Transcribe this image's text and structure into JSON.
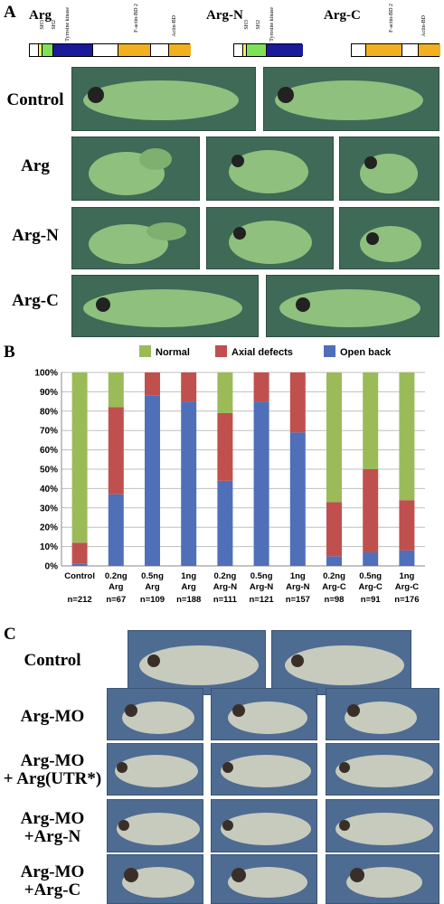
{
  "panels": {
    "a_label": "A",
    "b_label": "B",
    "c_label": "C"
  },
  "constructs": [
    {
      "name": "Arg",
      "domains": [
        "SH3",
        "SH2",
        "Tyrosine kinase",
        "F-actin-BD 2",
        "Actin-BD"
      ]
    },
    {
      "name": "Arg-N",
      "domains": [
        "SH3",
        "SH2",
        "Tyrosine kinase"
      ]
    },
    {
      "name": "Arg-C",
      "domains": [
        "F-actin-BD 2",
        "Actin-BD"
      ]
    }
  ],
  "panel_a_rows": [
    "Control",
    "Arg",
    "Arg-N",
    "Arg-C"
  ],
  "panel_c_rows": [
    {
      "line1": "Control",
      "line2": ""
    },
    {
      "line1": "Arg-MO",
      "line2": ""
    },
    {
      "line1": "Arg-MO",
      "line2": "+ Arg(UTR*)"
    },
    {
      "line1": "Arg-MO",
      "line2": "+Arg-N"
    },
    {
      "line1": "Arg-MO",
      "line2": "+Arg-C"
    }
  ],
  "colors": {
    "normal": "#9bbb59",
    "axial": "#c0504d",
    "open_back": "#4f6fb9",
    "sh2": "#7fe05a",
    "kinase": "#1a1a9a",
    "actin": "#f0b020"
  },
  "chart_data": {
    "type": "bar",
    "stacked": true,
    "legend_position": "top",
    "legend": [
      "Normal",
      "Axial defects",
      "Open back"
    ],
    "y_ticks": [
      "0%",
      "10%",
      "20%",
      "30%",
      "40%",
      "50%",
      "60%",
      "70%",
      "80%",
      "90%",
      "100%"
    ],
    "ylim": [
      0,
      100
    ],
    "grid": true,
    "categories": [
      {
        "line1": "Control",
        "line2": "",
        "n": "n=212"
      },
      {
        "line1": "0.2ng",
        "line2": "Arg",
        "n": "n=67"
      },
      {
        "line1": "0.5ng",
        "line2": "Arg",
        "n": "n=109"
      },
      {
        "line1": "1ng",
        "line2": "Arg",
        "n": "n=188"
      },
      {
        "line1": "0.2ng",
        "line2": "Arg-N",
        "n": "n=111"
      },
      {
        "line1": "0.5ng",
        "line2": "Arg-N",
        "n": "n=121"
      },
      {
        "line1": "1ng",
        "line2": "Arg-N",
        "n": "n=157"
      },
      {
        "line1": "0.2ng",
        "line2": "Arg-C",
        "n": "n=98"
      },
      {
        "line1": "0.5ng",
        "line2": "Arg-C",
        "n": "n=91"
      },
      {
        "line1": "1ng",
        "line2": "Arg-C",
        "n": "n=176"
      }
    ],
    "series": [
      {
        "name": "Open back",
        "values": [
          1,
          37,
          88,
          85,
          44,
          85,
          69,
          5,
          7,
          8
        ]
      },
      {
        "name": "Axial defects",
        "values": [
          11,
          45,
          12,
          15,
          35,
          15,
          31,
          28,
          43,
          26
        ]
      },
      {
        "name": "Normal",
        "values": [
          88,
          18,
          0,
          0,
          21,
          0,
          0,
          67,
          50,
          66
        ]
      }
    ]
  }
}
